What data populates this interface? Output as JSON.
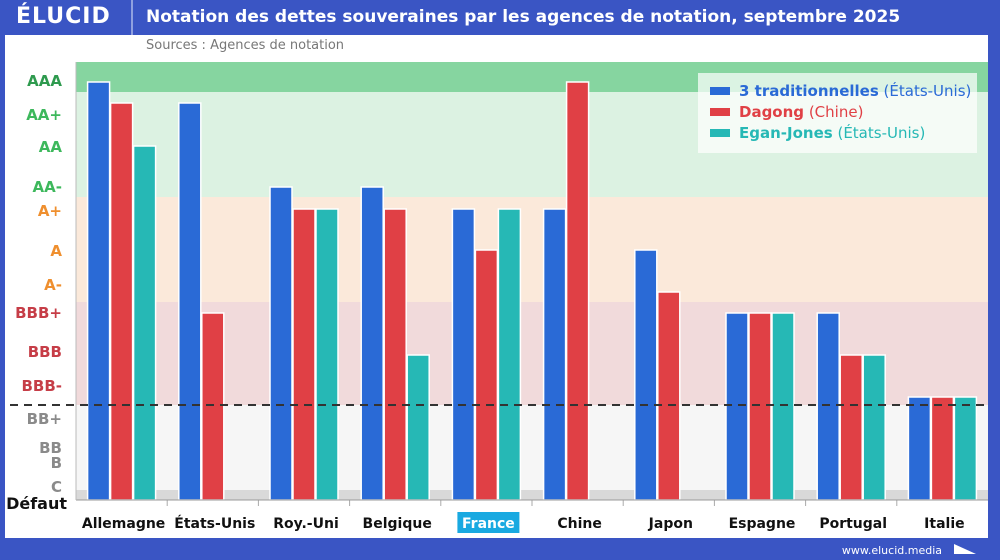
{
  "header": {
    "logo": "ÉLUCID",
    "title": "Notation des dettes souveraines par les agences de notation, septembre 2025"
  },
  "source": "Sources : Agences de notation",
  "footer": "www.elucid.media",
  "chart_data": {
    "type": "bar",
    "title": "Notation des dettes souveraines par les agences de notation, septembre 2025",
    "y_scale": "ordinal rating",
    "y_ticks": [
      "AAA",
      "AA+",
      "AA",
      "AA-",
      "A+",
      "A",
      "A-",
      "BBB+",
      "BBB",
      "BBB-",
      "BB+",
      "BB",
      "B",
      "C",
      "Défaut"
    ],
    "y_tick_colors": {
      "AAA": "#2e9a4e",
      "AA+": "#3db85c",
      "AA": "#3db85c",
      "AA-": "#3db85c",
      "A+": "#ef8f2e",
      "A": "#ef8f2e",
      "A-": "#ef8f2e",
      "BBB+": "#c63d47",
      "BBB": "#c63d47",
      "BBB-": "#c63d47",
      "BB+": "#8a8a8a",
      "BB": "#8a8a8a",
      "B": "#8a8a8a",
      "C": "#8a8a8a",
      "Défaut": "#111111"
    },
    "default_threshold": "between BBB- and BB+ (dashed line)",
    "categories": [
      "Allemagne",
      "États-Unis",
      "Roy.-Uni",
      "Belgique",
      "France",
      "Chine",
      "Japon",
      "Espagne",
      "Portugal",
      "Italie"
    ],
    "highlighted_category": "France",
    "series": [
      {
        "name": "3 traditionnelles",
        "origin": "(États-Unis)",
        "color": "#2a6ad6",
        "values": [
          "AAA",
          "AA+",
          "AA-",
          "AA-",
          "A+",
          "A+",
          "A",
          "BBB+",
          "BBB+",
          "BBB-"
        ]
      },
      {
        "name": "Dagong",
        "origin": "(Chine)",
        "color": "#e04045",
        "values": [
          "AA+",
          "BBB+",
          "A+",
          "A+",
          "A",
          "AAA",
          "A-",
          "BBB+",
          "BBB",
          "BBB-"
        ]
      },
      {
        "name": "Egan-Jones",
        "origin": "(États-Unis)",
        "color": "#26b8b5",
        "values": [
          "AA",
          null,
          "A+",
          "BBB",
          "A+",
          null,
          null,
          "BBB+",
          "BBB",
          "BBB-"
        ]
      }
    ],
    "legend": "top-right"
  }
}
